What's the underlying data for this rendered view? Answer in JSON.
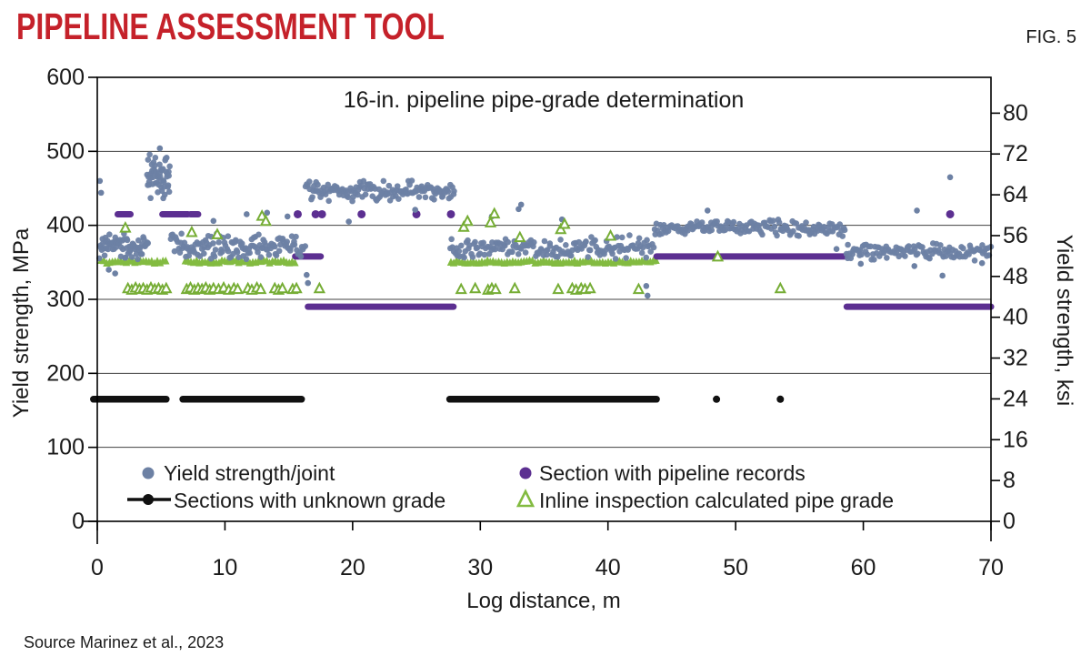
{
  "header": {
    "title": "PIPELINE ASSESSMENT TOOL",
    "fig_label": "FIG. 5"
  },
  "source": "Source Marinez et al., 2023",
  "colors": {
    "accent_red": "#c5212a",
    "blue": "#6d81a4",
    "purple": "#5c2f91",
    "green": "#83bb41",
    "green_stroke": "#76ad35",
    "black": "#111111",
    "grid": "#404040",
    "text": "#1a1a1a"
  },
  "chart_data": {
    "type": "scatter",
    "title": "16-in. pipeline pipe-grade determination",
    "xlabel": "Log distance, m",
    "ylabel_left": "Yield strength, MPa",
    "ylabel_right": "Yield strength, ksi",
    "xlim": [
      0,
      70
    ],
    "ylim_left": [
      0,
      600
    ],
    "ylim_right": [
      0,
      80
    ],
    "x_ticks": [
      0,
      10,
      20,
      30,
      40,
      50,
      60,
      70
    ],
    "y_ticks_left": [
      0,
      100,
      200,
      300,
      400,
      500,
      600
    ],
    "y_ticks_right": [
      0,
      8,
      16,
      24,
      32,
      40,
      48,
      56,
      64,
      72,
      80
    ],
    "grid_lines_mpa": [
      100,
      200,
      300,
      400,
      500
    ],
    "legend": [
      {
        "label": "Yield strength/joint",
        "marker": "dot",
        "color": "blue"
      },
      {
        "label": "Section with pipeline records",
        "marker": "dot",
        "color": "purple"
      },
      {
        "label": "Sections with unknown grade",
        "marker": "line-dot",
        "color": "black"
      },
      {
        "label": "Inline inspection calculated pipe grade",
        "marker": "open-triangle",
        "color": "green"
      }
    ],
    "series": {
      "yield_strength_joint": {
        "units": "MPa",
        "bands": [
          {
            "x": [
              0.15,
              4.0
            ],
            "y_center": 372,
            "y_spread": 19,
            "n": 70
          },
          {
            "x": [
              3.9,
              5.7
            ],
            "y_center": 465,
            "y_spread": 36,
            "n": 55
          },
          {
            "x": [
              5.7,
              16.3
            ],
            "y_center": 371,
            "y_spread": 19,
            "n": 135
          },
          {
            "x": [
              16.3,
              28.0
            ],
            "y_center": 447,
            "y_spread": 16,
            "n": 145
          },
          {
            "x": [
              27.6,
              43.6
            ],
            "y_center": 370,
            "y_spread": 17,
            "n": 165
          },
          {
            "x": [
              43.6,
              58.6
            ],
            "y_center": 397,
            "y_spread": 12,
            "n": 160
          },
          {
            "x": [
              58.6,
              70.0
            ],
            "y_center": 365,
            "y_spread": 13,
            "n": 120
          }
        ],
        "outliers": [
          [
            0.2,
            460
          ],
          [
            0.3,
            444
          ],
          [
            0.9,
            340
          ],
          [
            1.4,
            335
          ],
          [
            4.9,
            504
          ],
          [
            9.1,
            406
          ],
          [
            11.7,
            415
          ],
          [
            13.3,
            417
          ],
          [
            14.9,
            412
          ],
          [
            16.4,
            333
          ],
          [
            16.5,
            322
          ],
          [
            19.7,
            405
          ],
          [
            24.9,
            421
          ],
          [
            30.9,
            412
          ],
          [
            33.0,
            422
          ],
          [
            33.2,
            428
          ],
          [
            36.4,
            408
          ],
          [
            43.0,
            318
          ],
          [
            43.1,
            305
          ],
          [
            47.8,
            420
          ],
          [
            57.9,
            368
          ],
          [
            59.8,
            348
          ],
          [
            64.0,
            345
          ],
          [
            64.2,
            420
          ],
          [
            66.2,
            332
          ],
          [
            66.8,
            465
          ],
          [
            69.3,
            349
          ]
        ]
      },
      "section_with_pipeline_records": {
        "units": "MPa",
        "segments": [
          {
            "y": 415,
            "x": [
              1.6,
              2.6
            ]
          },
          {
            "y": 415,
            "x": [
              5.1,
              7.1
            ]
          },
          {
            "y": 415,
            "x": [
              7.3,
              7.9
            ]
          },
          {
            "y": 358,
            "x": [
              15.5,
              17.5
            ]
          },
          {
            "y": 358,
            "x": [
              43.8,
              58.6
            ]
          },
          {
            "y": 290,
            "x": [
              16.5,
              27.9
            ]
          },
          {
            "y": 290,
            "x": [
              58.7,
              70.0
            ]
          }
        ],
        "dots": [
          [
            15.7,
            415
          ],
          [
            17.1,
            415
          ],
          [
            17.6,
            415
          ],
          [
            20.7,
            415
          ],
          [
            25.0,
            415
          ],
          [
            27.7,
            415
          ],
          [
            66.8,
            415
          ]
        ]
      },
      "sections_with_unknown_grade": {
        "units": "MPa",
        "y": 165,
        "segments": [
          [
            -0.3,
            5.4
          ],
          [
            6.7,
            16.0
          ],
          [
            27.6,
            43.8
          ]
        ],
        "dots": [
          [
            48.5,
            165
          ],
          [
            53.5,
            165
          ]
        ]
      },
      "inline_inspection_pipe_grade": {
        "units": "MPa",
        "dense_band": {
          "y": 351,
          "segments": [
            [
              0.3,
              5.5
            ],
            [
              6.9,
              15.5
            ],
            [
              27.7,
              43.8
            ]
          ]
        },
        "scattered": [
          [
            2.4,
            315
          ],
          [
            2.7,
            313
          ],
          [
            3.0,
            316
          ],
          [
            3.3,
            314
          ],
          [
            3.6,
            315
          ],
          [
            3.9,
            313
          ],
          [
            4.2,
            316
          ],
          [
            4.5,
            314
          ],
          [
            4.8,
            315
          ],
          [
            5.1,
            313
          ],
          [
            5.4,
            315
          ],
          [
            7.0,
            314
          ],
          [
            7.3,
            316
          ],
          [
            7.6,
            313
          ],
          [
            7.9,
            315
          ],
          [
            8.2,
            314
          ],
          [
            8.5,
            316
          ],
          [
            8.8,
            313
          ],
          [
            9.1,
            315
          ],
          [
            9.5,
            314
          ],
          [
            9.9,
            316
          ],
          [
            10.3,
            313
          ],
          [
            10.7,
            315
          ],
          [
            11.0,
            314
          ],
          [
            11.8,
            315
          ],
          [
            12.1,
            313
          ],
          [
            12.5,
            316
          ],
          [
            12.8,
            314
          ],
          [
            13.9,
            315
          ],
          [
            14.2,
            313
          ],
          [
            14.5,
            315
          ],
          [
            15.3,
            314
          ],
          [
            15.6,
            315
          ],
          [
            17.4,
            315
          ],
          [
            28.5,
            314
          ],
          [
            29.6,
            315
          ],
          [
            30.6,
            313
          ],
          [
            30.9,
            315
          ],
          [
            31.2,
            314
          ],
          [
            32.7,
            315
          ],
          [
            36.1,
            314
          ],
          [
            37.2,
            315
          ],
          [
            37.5,
            313
          ],
          [
            37.9,
            315
          ],
          [
            38.2,
            314
          ],
          [
            38.6,
            315
          ],
          [
            42.4,
            314
          ],
          [
            53.5,
            315
          ],
          [
            2.2,
            397
          ],
          [
            7.4,
            391
          ],
          [
            9.4,
            388
          ],
          [
            12.9,
            413
          ],
          [
            13.2,
            406
          ],
          [
            28.7,
            398
          ],
          [
            29.0,
            406
          ],
          [
            30.8,
            404
          ],
          [
            31.1,
            416
          ],
          [
            33.1,
            384
          ],
          [
            36.3,
            395
          ],
          [
            36.6,
            402
          ],
          [
            40.2,
            386
          ],
          [
            48.6,
            358
          ]
        ]
      }
    }
  }
}
